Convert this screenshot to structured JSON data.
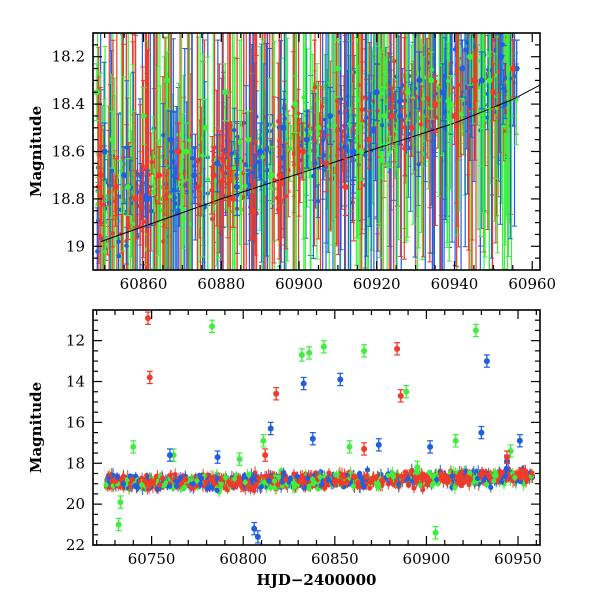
{
  "chart_data": [
    {
      "type": "scatter",
      "title": "",
      "xlabel": "",
      "ylabel": "Magnitude",
      "xlim": [
        60847,
        60962
      ],
      "ylim": [
        19.1,
        18.1
      ],
      "y_inverted": true,
      "xticks": [
        60860,
        60880,
        60900,
        60920,
        60940,
        60960
      ],
      "xtick_labels": [
        "60860",
        "60880",
        "60900",
        "60920",
        "60940",
        "60960"
      ],
      "yticks": [
        18.2,
        18.4,
        18.6,
        18.8,
        19.0
      ],
      "ytick_labels": [
        "18.2",
        "18.4",
        "18.6",
        "18.8",
        "19"
      ],
      "error_bars": true,
      "colors": {
        "green": "#3ef03e",
        "blue": "#1f5fe0",
        "red": "#f03a2a",
        "curve": "#000000"
      },
      "series": [
        {
          "name": "green",
          "color": "#3ef03e",
          "x": [
            60848,
            60852,
            60856,
            60860,
            60866,
            60871,
            60876,
            60881,
            60887,
            60893,
            60899,
            60905,
            60910,
            60916,
            60922,
            60928,
            60934,
            60939,
            60944,
            60949,
            60954
          ],
          "y": [
            18.35,
            18.55,
            18.75,
            18.45,
            18.3,
            18.6,
            18.5,
            18.35,
            18.55,
            18.7,
            18.4,
            18.5,
            18.25,
            18.6,
            18.45,
            18.35,
            18.3,
            18.4,
            18.2,
            18.3,
            18.25
          ]
        },
        {
          "name": "blue",
          "color": "#1f5fe0",
          "x": [
            60850,
            60855,
            60861,
            60867,
            60873,
            60879,
            60884,
            60890,
            60896,
            60902,
            60908,
            60914,
            60920,
            60926,
            60931,
            60937,
            60942,
            60947,
            60952,
            60956
          ],
          "y": [
            18.6,
            18.7,
            18.8,
            18.55,
            18.7,
            18.65,
            18.75,
            18.6,
            18.5,
            18.55,
            18.45,
            18.6,
            18.35,
            18.45,
            18.3,
            18.35,
            18.25,
            18.3,
            18.2,
            18.25
          ]
        },
        {
          "name": "red",
          "color": "#f03a2a",
          "x": [
            60849,
            60853,
            60858,
            60864,
            60869,
            60874,
            60878,
            60883,
            60888,
            60895,
            60901,
            60907,
            60912,
            60918,
            60924,
            60929,
            60935,
            60940,
            60945,
            60950,
            60955
          ],
          "y": [
            18.7,
            18.75,
            18.8,
            18.7,
            18.6,
            18.75,
            18.7,
            18.8,
            18.85,
            18.7,
            18.6,
            18.65,
            18.75,
            18.55,
            18.45,
            18.5,
            18.4,
            18.45,
            18.3,
            18.35,
            18.25
          ]
        }
      ],
      "model_curve": {
        "color": "#000000",
        "x": [
          60849,
          60880,
          60910,
          60940,
          60955,
          60962
        ],
        "y": [
          18.98,
          18.8,
          18.64,
          18.48,
          18.38,
          18.32
        ]
      }
    },
    {
      "type": "scatter",
      "title": "",
      "xlabel": "HJD−2400000",
      "ylabel": "Magnitude",
      "xlim": [
        60718,
        60962
      ],
      "ylim": [
        22,
        10.5
      ],
      "y_inverted": true,
      "xticks": [
        60750,
        60800,
        60850,
        60900,
        60950
      ],
      "xtick_labels": [
        "60750",
        "60800",
        "60850",
        "60900",
        "60950"
      ],
      "yticks": [
        12,
        14,
        16,
        18,
        20,
        22
      ],
      "ytick_labels": [
        "12",
        "14",
        "16",
        "18",
        "20",
        "22"
      ],
      "error_bars": true,
      "colors": {
        "green": "#3ef03e",
        "blue": "#1f5fe0",
        "red": "#f03a2a"
      },
      "series": [
        {
          "name": "green",
          "color": "#3ef03e",
          "x": [
            60732,
            60740,
            60783,
            60832,
            60836,
            60844,
            60866,
            60889,
            60905,
            60927,
            60762,
            60798,
            60811,
            60858,
            60895,
            60916,
            60946,
            60733
          ],
          "y": [
            21.0,
            17.2,
            11.3,
            12.7,
            12.6,
            12.3,
            12.5,
            14.5,
            21.4,
            11.5,
            17.6,
            17.8,
            16.9,
            17.2,
            18.2,
            16.9,
            17.4,
            19.9
          ]
        },
        {
          "name": "blue",
          "color": "#1f5fe0",
          "x": [
            60815,
            60833,
            60853,
            60933,
            60808,
            60786,
            60760,
            60838,
            60874,
            60902,
            60930,
            60951,
            60806,
            60944
          ],
          "y": [
            16.3,
            14.1,
            13.9,
            13.0,
            21.6,
            17.7,
            17.6,
            16.8,
            17.1,
            17.2,
            16.5,
            16.9,
            21.2,
            17.9
          ]
        },
        {
          "name": "red",
          "color": "#f03a2a",
          "x": [
            60748,
            60749,
            60818,
            60884,
            60886,
            60812,
            60866,
            60944
          ],
          "y": [
            10.9,
            13.8,
            14.6,
            12.4,
            14.7,
            17.6,
            17.3,
            17.7
          ]
        }
      ],
      "baseline": {
        "x": [
          60725,
          60800,
          60880,
          60958
        ],
        "y": [
          18.95,
          18.92,
          18.82,
          18.62
        ],
        "scatter": 0.35
      }
    }
  ]
}
